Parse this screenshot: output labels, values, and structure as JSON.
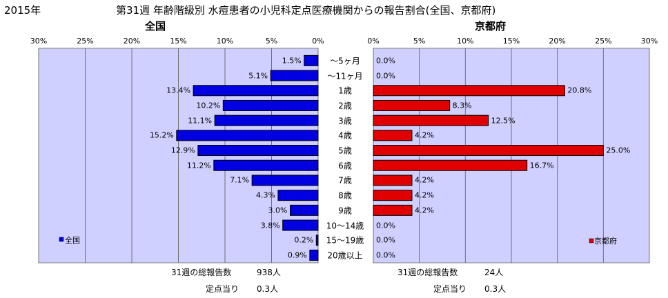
{
  "header": {
    "year": "2015年",
    "title": "第31週 年齢階級別 水痘患者の小児科定点医療機関からの報告割合(全国、京都府)"
  },
  "colors": {
    "plot_bg": "#cfd0ff",
    "national_bar": "#0000e0",
    "kyoto_bar": "#e00000",
    "gridline": "#707070"
  },
  "chart_data": [
    {
      "type": "bar",
      "orientation": "horizontal",
      "direction": "right-to-left",
      "title": "全国",
      "legend": "全国",
      "legend_position": "bottom-left",
      "xlim": [
        0,
        30
      ],
      "x_ticks": [
        "30%",
        "25%",
        "20%",
        "15%",
        "10%",
        "5%",
        "0%"
      ],
      "categories": [
        "～5ヶ月",
        "～11ヶ月",
        "1歳",
        "2歳",
        "3歳",
        "4歳",
        "5歳",
        "6歳",
        "7歳",
        "8歳",
        "9歳",
        "10～14歳",
        "15～19歳",
        "20歳以上"
      ],
      "values": [
        1.5,
        5.1,
        13.4,
        10.2,
        11.1,
        15.2,
        12.9,
        11.2,
        7.1,
        4.3,
        3.0,
        3.8,
        0.2,
        0.9
      ],
      "value_labels": [
        "1.5%",
        "5.1%",
        "13.4%",
        "10.2%",
        "11.1%",
        "15.2%",
        "12.9%",
        "11.2%",
        "7.1%",
        "4.3%",
        "3.0%",
        "3.8%",
        "0.2%",
        "0.9%"
      ],
      "grid": true
    },
    {
      "type": "bar",
      "orientation": "horizontal",
      "direction": "left-to-right",
      "title": "京都府",
      "legend": "京都府",
      "legend_position": "bottom-right",
      "xlim": [
        0,
        30
      ],
      "x_ticks": [
        "0%",
        "5%",
        "10%",
        "15%",
        "20%",
        "25%",
        "30%"
      ],
      "categories": [
        "～5ヶ月",
        "～11ヶ月",
        "1歳",
        "2歳",
        "3歳",
        "4歳",
        "5歳",
        "6歳",
        "7歳",
        "8歳",
        "9歳",
        "10～14歳",
        "15～19歳",
        "20歳以上"
      ],
      "values": [
        0.0,
        0.0,
        20.8,
        8.3,
        12.5,
        4.2,
        25.0,
        16.7,
        4.2,
        4.2,
        4.2,
        0.0,
        0.0,
        0.0
      ],
      "value_labels": [
        "0.0%",
        "0.0%",
        "20.8%",
        "8.3%",
        "12.5%",
        "4.2%",
        "25.0%",
        "16.7%",
        "4.2%",
        "4.2%",
        "4.2%",
        "0.0%",
        "0.0%",
        "0.0%"
      ],
      "grid": true
    }
  ],
  "footer": {
    "national_total_label": "31週の総報告数",
    "national_total_value": "938人",
    "national_per_label": "定点当り",
    "national_per_value": "0.3人",
    "kyoto_total_label": "31週の総報告数",
    "kyoto_total_value": "24人",
    "kyoto_per_label": "定点当り",
    "kyoto_per_value": "0.3人"
  }
}
